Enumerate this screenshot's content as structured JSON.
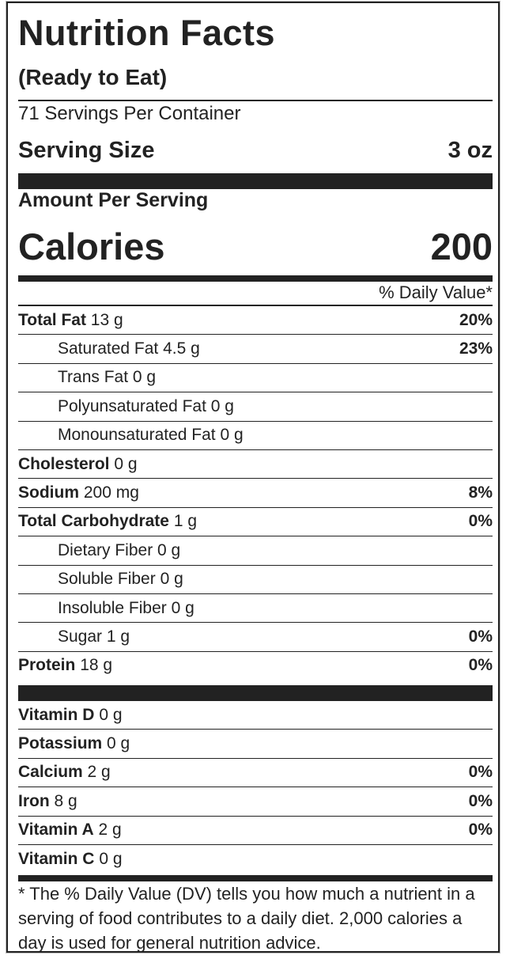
{
  "title": "Nutrition Facts",
  "subtitle": "(Ready to Eat)",
  "servings_per_container": "71 Servings Per Container",
  "serving_size": {
    "label": "Serving Size",
    "value": "3 oz"
  },
  "amount_per_serving": "Amount Per Serving",
  "calories": {
    "label": "Calories",
    "value": "200"
  },
  "daily_value_header": "% Daily Value*",
  "nutrients": [
    {
      "name": "Total Fat",
      "amount": "13 g",
      "dv": "20%",
      "indent": false
    },
    {
      "name": "Saturated Fat",
      "amount": "4.5 g",
      "dv": "23%",
      "indent": true
    },
    {
      "name": "Trans Fat",
      "amount": "0 g",
      "dv": "",
      "indent": true
    },
    {
      "name": "Polyunsaturated Fat",
      "amount": "0 g",
      "dv": "",
      "indent": true
    },
    {
      "name": "Monounsaturated Fat",
      "amount": "0 g",
      "dv": "",
      "indent": true
    },
    {
      "name": "Cholesterol",
      "amount": "0 g",
      "dv": "",
      "indent": false
    },
    {
      "name": "Sodium",
      "amount": "200 mg",
      "dv": "8%",
      "indent": false
    },
    {
      "name": "Total Carbohydrate",
      "amount": "1 g",
      "dv": "0%",
      "indent": false
    },
    {
      "name": "Dietary Fiber",
      "amount": "0 g",
      "dv": "",
      "indent": true
    },
    {
      "name": "Soluble Fiber",
      "amount": "0 g",
      "dv": "",
      "indent": true
    },
    {
      "name": "Insoluble Fiber",
      "amount": "0 g",
      "dv": "",
      "indent": true
    },
    {
      "name": "Sugar",
      "amount": "1 g",
      "dv": "0%",
      "indent": true
    },
    {
      "name": "Protein",
      "amount": "18 g",
      "dv": "0%",
      "indent": false
    }
  ],
  "vitamins": [
    {
      "name": "Vitamin D",
      "amount": "0 g",
      "dv": ""
    },
    {
      "name": "Potassium",
      "amount": "0 g",
      "dv": ""
    },
    {
      "name": "Calcium",
      "amount": "2 g",
      "dv": "0%"
    },
    {
      "name": "Iron",
      "amount": "8 g",
      "dv": "0%"
    },
    {
      "name": "Vitamin A",
      "amount": "2 g",
      "dv": "0%"
    },
    {
      "name": "Vitamin C",
      "amount": "0 g",
      "dv": ""
    }
  ],
  "footnote": "* The % Daily Value (DV) tells you how much a nutrient in a serving of food contributes to a daily diet. 2,000 calories a day is used for general nutrition advice."
}
